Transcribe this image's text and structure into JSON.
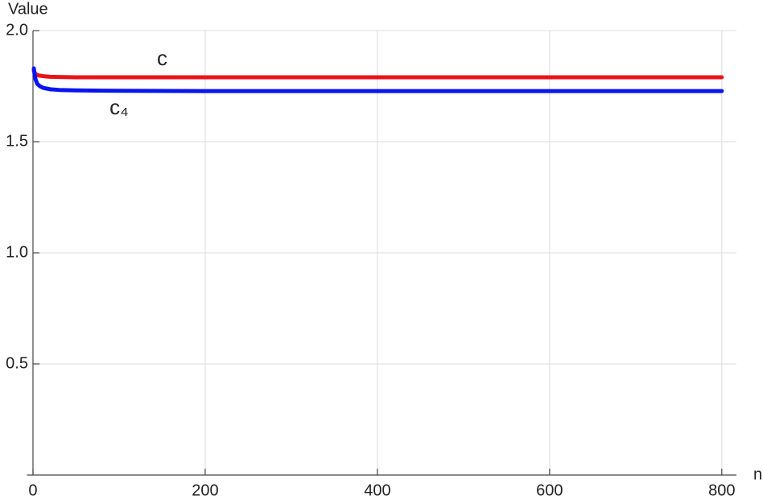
{
  "chart_data": {
    "type": "line",
    "y_label": "Value",
    "x_label": "n",
    "x": [
      1,
      2,
      3,
      5,
      8,
      12,
      20,
      30,
      50,
      100,
      200,
      300,
      400,
      500,
      600,
      700,
      800
    ],
    "series": [
      {
        "name": "c",
        "color": "#e8141a",
        "values": [
          1.82,
          1.81,
          1.805,
          1.8,
          1.797,
          1.795,
          1.792,
          1.791,
          1.79,
          1.79,
          1.79,
          1.79,
          1.79,
          1.79,
          1.79,
          1.79,
          1.79
        ]
      },
      {
        "name": "c₄",
        "color": "#0a14f0",
        "values": [
          1.83,
          1.8,
          1.78,
          1.76,
          1.75,
          1.742,
          1.736,
          1.733,
          1.731,
          1.729,
          1.728,
          1.728,
          1.728,
          1.728,
          1.728,
          1.728,
          1.728
        ]
      }
    ],
    "xlim": [
      -7,
      817
    ],
    "ylim": [
      0,
      2.0
    ],
    "xticks": [
      0,
      200,
      400,
      600,
      800
    ],
    "yticks": [
      0.5,
      {
        "value": 1.0,
        "label": "1.0"
      },
      1.5,
      {
        "value": 2.0,
        "label": "2.0"
      }
    ],
    "grid": true
  }
}
